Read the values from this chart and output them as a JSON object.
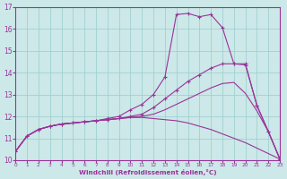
{
  "background_color": "#cce8e8",
  "line_color": "#993399",
  "grid_color": "#99cccc",
  "xlabel": "Windchill (Refroidissement éolien,°C)",
  "xlim": [
    0,
    23
  ],
  "ylim": [
    10,
    17
  ],
  "xticks": [
    0,
    1,
    2,
    3,
    4,
    5,
    6,
    7,
    8,
    9,
    10,
    11,
    12,
    13,
    14,
    15,
    16,
    17,
    18,
    19,
    20,
    21,
    22,
    23
  ],
  "yticks": [
    10,
    11,
    12,
    13,
    14,
    15,
    16,
    17
  ],
  "line_descending_x": [
    0,
    1,
    2,
    3,
    4,
    5,
    6,
    7,
    8,
    9,
    10,
    11,
    12,
    13,
    14,
    15,
    16,
    17,
    18,
    19,
    20,
    21,
    22,
    23
  ],
  "line_descending_y": [
    10.4,
    11.1,
    11.4,
    11.55,
    11.65,
    11.7,
    11.75,
    11.8,
    11.85,
    11.9,
    11.95,
    11.95,
    11.9,
    11.85,
    11.8,
    11.7,
    11.55,
    11.4,
    11.2,
    11.0,
    10.8,
    10.55,
    10.3,
    10.05
  ],
  "line_flat_x": [
    0,
    1,
    2,
    3,
    4,
    5,
    6,
    7,
    8,
    9,
    10,
    11,
    12,
    13,
    14,
    15,
    16,
    17,
    18,
    19,
    20,
    21,
    22,
    23
  ],
  "line_flat_y": [
    10.4,
    11.1,
    11.4,
    11.55,
    11.65,
    11.7,
    11.75,
    11.8,
    11.85,
    11.9,
    11.95,
    12.0,
    12.1,
    12.3,
    12.55,
    12.8,
    13.05,
    13.3,
    13.5,
    13.55,
    13.05,
    12.25,
    11.3,
    10.05
  ],
  "line_medium_x": [
    0,
    1,
    2,
    3,
    4,
    5,
    6,
    7,
    8,
    9,
    10,
    11,
    12,
    13,
    14,
    15,
    16,
    17,
    18,
    19,
    20,
    21,
    22,
    23
  ],
  "line_medium_y": [
    10.4,
    11.1,
    11.4,
    11.55,
    11.65,
    11.7,
    11.75,
    11.8,
    11.85,
    11.9,
    12.0,
    12.1,
    12.4,
    12.8,
    13.2,
    13.6,
    13.9,
    14.2,
    14.4,
    14.4,
    14.35,
    12.5,
    11.3,
    10.05
  ],
  "line_peak_x": [
    0,
    1,
    2,
    3,
    4,
    5,
    6,
    7,
    8,
    9,
    10,
    11,
    12,
    13,
    14,
    15,
    16,
    17,
    18,
    19,
    20,
    21,
    22,
    23
  ],
  "line_peak_y": [
    10.4,
    11.1,
    11.4,
    11.55,
    11.65,
    11.7,
    11.75,
    11.8,
    11.9,
    12.0,
    12.3,
    12.55,
    13.0,
    13.8,
    16.65,
    16.7,
    16.55,
    16.65,
    16.05,
    14.4,
    14.4,
    12.5,
    11.3,
    10.05
  ]
}
